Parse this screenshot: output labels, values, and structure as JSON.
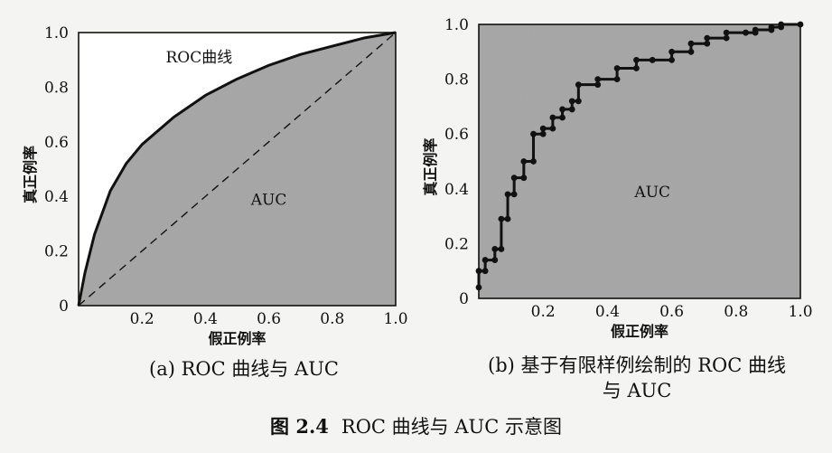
{
  "chart_data": [
    {
      "type": "area",
      "panel": "a",
      "title": "",
      "caption": "(a) ROC 曲线与 AUC",
      "xlabel": "假正例率",
      "ylabel": "真正例率",
      "xlim": [
        0,
        1.0
      ],
      "ylim": [
        0,
        1.0
      ],
      "x_ticks": [
        "0.2",
        "0.4",
        "0.6",
        "0.8",
        "1.0"
      ],
      "y_ticks": [
        "0",
        "0.2",
        "0.4",
        "0.6",
        "0.8",
        "1.0"
      ],
      "series": [
        {
          "name": "ROC曲线",
          "x": [
            0,
            0.02,
            0.05,
            0.1,
            0.15,
            0.2,
            0.3,
            0.4,
            0.5,
            0.6,
            0.7,
            0.8,
            0.9,
            1.0
          ],
          "y": [
            0,
            0.12,
            0.26,
            0.42,
            0.52,
            0.59,
            0.69,
            0.77,
            0.83,
            0.88,
            0.92,
            0.95,
            0.98,
            1.0
          ]
        },
        {
          "name": "",
          "style": "dashed",
          "x": [
            0,
            1.0
          ],
          "y": [
            0,
            1.0
          ]
        }
      ],
      "annotations": [
        {
          "text": "ROC曲线",
          "x": 0.38,
          "y": 0.89
        },
        {
          "text": "AUC",
          "x": 0.6,
          "y": 0.37
        }
      ],
      "fill": "area under curve shaded gray",
      "grid": false,
      "legend": "none"
    },
    {
      "type": "area",
      "panel": "b",
      "title": "",
      "caption": [
        "(b) 基于有限样例绘制的 ROC 曲线",
        "与 AUC"
      ],
      "xlabel": "假正例率",
      "ylabel": "真正例率",
      "xlim": [
        0,
        1.0
      ],
      "ylim": [
        0,
        1.0
      ],
      "x_ticks": [
        "0.2",
        "0.4",
        "0.6",
        "0.8",
        "1.0"
      ],
      "y_ticks": [
        "0",
        "0.2",
        "0.4",
        "0.6",
        "0.8",
        "1.0"
      ],
      "series": [
        {
          "name": "",
          "style": "step with markers",
          "x": [
            0,
            0,
            0.02,
            0.02,
            0.05,
            0.05,
            0.07,
            0.07,
            0.09,
            0.09,
            0.11,
            0.11,
            0.14,
            0.14,
            0.17,
            0.17,
            0.2,
            0.2,
            0.23,
            0.23,
            0.26,
            0.26,
            0.29,
            0.29,
            0.31,
            0.31,
            0.37,
            0.37,
            0.43,
            0.43,
            0.49,
            0.49,
            0.54,
            0.54,
            0.6,
            0.6,
            0.66,
            0.66,
            0.71,
            0.71,
            0.77,
            0.77,
            0.83,
            0.83,
            0.86,
            0.86,
            0.91,
            0.91,
            0.94,
            0.94,
            1.0
          ],
          "y": [
            0.04,
            0.1,
            0.1,
            0.14,
            0.14,
            0.18,
            0.18,
            0.29,
            0.29,
            0.38,
            0.38,
            0.44,
            0.44,
            0.5,
            0.5,
            0.6,
            0.6,
            0.62,
            0.62,
            0.66,
            0.66,
            0.69,
            0.69,
            0.72,
            0.72,
            0.78,
            0.78,
            0.8,
            0.8,
            0.84,
            0.84,
            0.87,
            0.87,
            0.87,
            0.87,
            0.9,
            0.9,
            0.93,
            0.93,
            0.95,
            0.95,
            0.97,
            0.97,
            0.97,
            0.97,
            0.98,
            0.98,
            0.99,
            0.99,
            1.0,
            1.0
          ]
        }
      ],
      "annotations": [
        {
          "text": "AUC",
          "x": 0.54,
          "y": 0.37
        }
      ],
      "fill": "entire plot area shaded gray",
      "grid": false,
      "legend": "none"
    }
  ],
  "figure_title": {
    "number": "图 2.4",
    "text": "ROC 曲线与 AUC 示意图"
  }
}
